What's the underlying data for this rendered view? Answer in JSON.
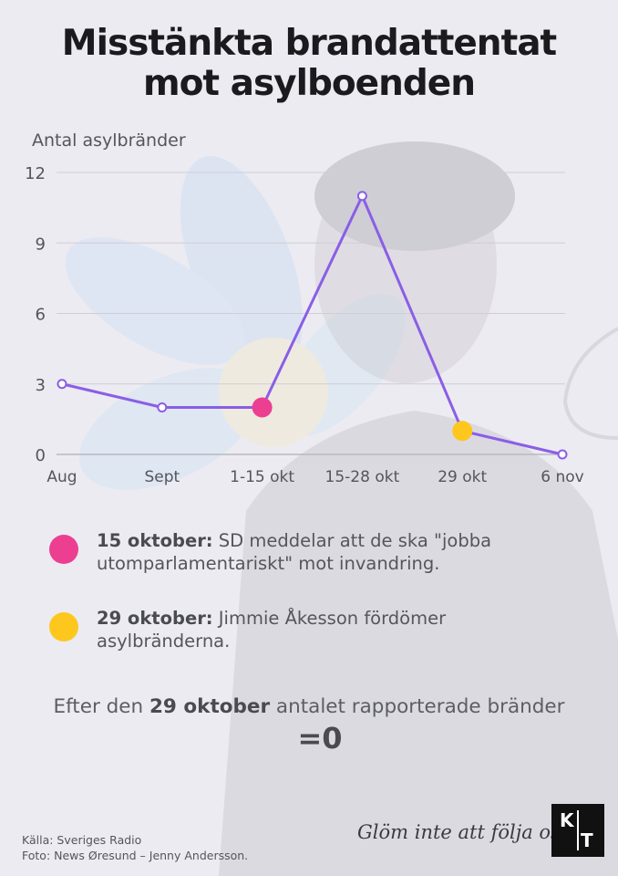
{
  "title": [
    "Misstänkta brandattentat",
    "mot asylboenden"
  ],
  "chart_data": {
    "type": "line",
    "ylabel": "Antal asylbränder",
    "categories": [
      "Aug",
      "Sept",
      "1-15 okt",
      "15-28 okt",
      "29 okt",
      "6 nov"
    ],
    "values": [
      3,
      2,
      2,
      11,
      1,
      0
    ],
    "yticks": [
      0,
      3,
      6,
      9,
      12
    ],
    "ylim": [
      0,
      12
    ],
    "grid": true,
    "line_color": "#8a5ee6",
    "highlights": [
      {
        "category": "1-15 okt",
        "color": "#ec3f92"
      },
      {
        "category": "29 okt",
        "color": "#fdc71e"
      }
    ]
  },
  "legend": [
    {
      "date": "15 oktober:",
      "text": " SD meddelar att de ska \"jobba utomparlamentariskt\" mot invandring.",
      "color": "#ec3f92"
    },
    {
      "date": "29 oktober:",
      "text": " Jimmie Åkesson fördömer asylbränderna.",
      "color": "#fdc71e"
    }
  ],
  "after": {
    "before": "Efter den ",
    "bold": "29 oktober",
    "after": " antalet rapporterade bränder"
  },
  "result": "=0",
  "source": [
    "Källa: Sveriges Radio",
    "Foto: News Øresund – Jenny Andersson."
  ],
  "follow": "Glöm inte att följa oss",
  "logo": {
    "top": "K",
    "bottom": "T"
  }
}
